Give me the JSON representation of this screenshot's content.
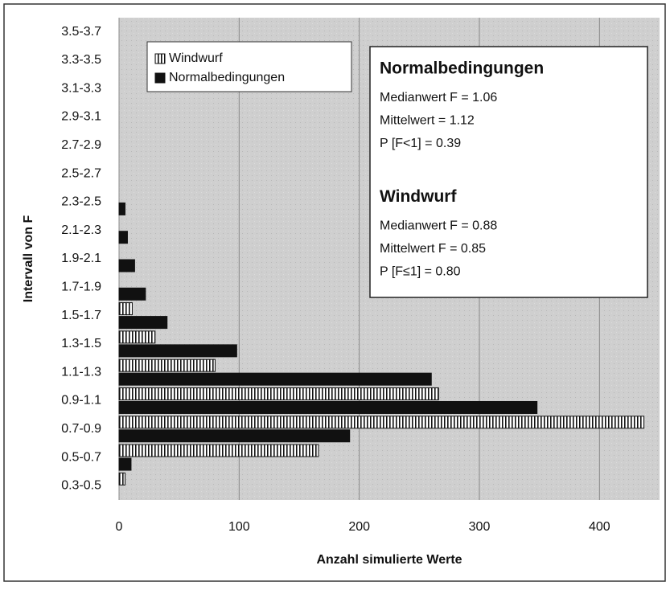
{
  "chart_data": {
    "type": "barh",
    "xlabel": "Anzahl simulierte Werte",
    "ylabel": "Intervall von F",
    "categories": [
      "0.3-0.5",
      "0.5-0.7",
      "0.7-0.9",
      "0.9-1.1",
      "1.1-1.3",
      "1.3-1.5",
      "1.5-1.7",
      "1.7-1.9",
      "1.9-2.1",
      "2.1-2.3",
      "2.3-2.5",
      "2.5-2.7",
      "2.7-2.9",
      "2.9-3.1",
      "3.1-3.3",
      "3.3-3.5",
      "3.5-3.7"
    ],
    "series": [
      {
        "name": "Windwurf",
        "color": "#ffffff",
        "pattern": "vertical-stripes",
        "values": [
          5,
          166,
          437,
          266,
          80,
          30,
          11,
          0,
          0,
          0,
          0,
          0,
          0,
          0,
          0,
          0,
          0
        ]
      },
      {
        "name": "Normalbedingungen",
        "color": "#111111",
        "values": [
          0,
          10,
          192,
          348,
          260,
          98,
          40,
          22,
          13,
          7,
          5,
          0,
          0,
          0,
          0,
          0,
          0
        ]
      }
    ],
    "xlim": [
      0,
      450
    ],
    "xticks": [
      0,
      100,
      200,
      300,
      400
    ],
    "grid": true,
    "legend": "upper left",
    "annotations": [
      {
        "heading": "Normalbedingungen",
        "lines": [
          "Medianwert F = 1.06",
          "Mittelwert = 1.12",
          "P [F<1] = 0.39"
        ]
      },
      {
        "heading": "Windwurf",
        "lines": [
          "Medianwert F = 0.88",
          "Mittelwert F = 0.85",
          "P [F≤1] = 0.80"
        ]
      }
    ]
  }
}
